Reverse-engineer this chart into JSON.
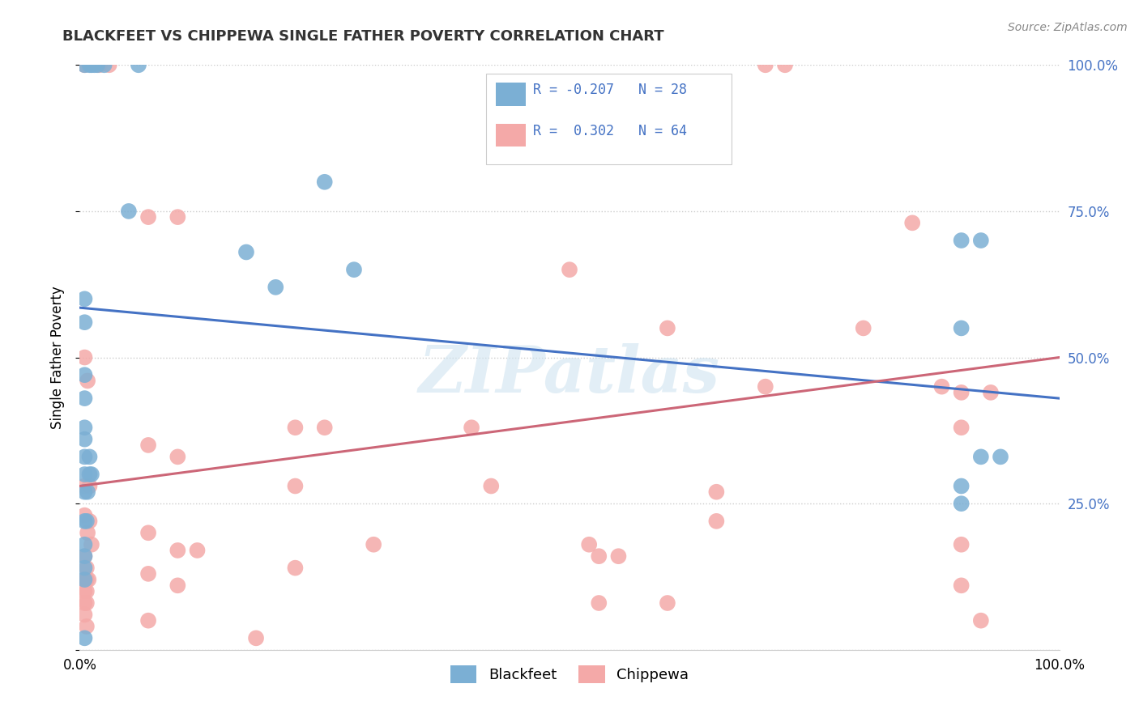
{
  "title": "BLACKFEET VS CHIPPEWA SINGLE FATHER POVERTY CORRELATION CHART",
  "source": "Source: ZipAtlas.com",
  "ylabel": "Single Father Poverty",
  "watermark": "ZIPatlas",
  "blue_color": "#7BAFD4",
  "pink_color": "#F4A9A8",
  "line_blue": "#4472C4",
  "line_pink": "#CC6677",
  "legend_text_color": "#4472C4",
  "blackfeet_points": [
    [
      0.005,
      1.0
    ],
    [
      0.01,
      1.0
    ],
    [
      0.012,
      1.0
    ],
    [
      0.015,
      1.0
    ],
    [
      0.018,
      1.0
    ],
    [
      0.025,
      1.0
    ],
    [
      0.06,
      1.0
    ],
    [
      0.005,
      0.6
    ],
    [
      0.005,
      0.56
    ],
    [
      0.005,
      0.47
    ],
    [
      0.005,
      0.43
    ],
    [
      0.005,
      0.38
    ],
    [
      0.005,
      0.36
    ],
    [
      0.005,
      0.33
    ],
    [
      0.01,
      0.33
    ],
    [
      0.005,
      0.3
    ],
    [
      0.01,
      0.3
    ],
    [
      0.012,
      0.3
    ],
    [
      0.005,
      0.27
    ],
    [
      0.008,
      0.27
    ],
    [
      0.005,
      0.22
    ],
    [
      0.007,
      0.22
    ],
    [
      0.005,
      0.18
    ],
    [
      0.005,
      0.16
    ],
    [
      0.005,
      0.14
    ],
    [
      0.005,
      0.12
    ],
    [
      0.17,
      0.68
    ],
    [
      0.2,
      0.62
    ],
    [
      0.25,
      0.8
    ],
    [
      0.28,
      0.65
    ],
    [
      0.9,
      0.7
    ],
    [
      0.92,
      0.7
    ],
    [
      0.9,
      0.55
    ],
    [
      0.92,
      0.33
    ],
    [
      0.94,
      0.33
    ],
    [
      0.9,
      0.28
    ],
    [
      0.9,
      0.25
    ],
    [
      0.05,
      0.75
    ],
    [
      0.005,
      0.02
    ]
  ],
  "chippewa_points": [
    [
      0.005,
      0.28
    ],
    [
      0.01,
      0.28
    ],
    [
      0.005,
      0.5
    ],
    [
      0.008,
      0.46
    ],
    [
      0.005,
      0.23
    ],
    [
      0.008,
      0.2
    ],
    [
      0.005,
      0.16
    ],
    [
      0.007,
      0.14
    ],
    [
      0.005,
      0.12
    ],
    [
      0.007,
      0.12
    ],
    [
      0.009,
      0.12
    ],
    [
      0.005,
      0.1
    ],
    [
      0.007,
      0.1
    ],
    [
      0.005,
      0.08
    ],
    [
      0.007,
      0.08
    ],
    [
      0.005,
      0.06
    ],
    [
      0.007,
      0.04
    ],
    [
      0.01,
      0.22
    ],
    [
      0.012,
      0.18
    ],
    [
      0.005,
      1.0
    ],
    [
      0.02,
      1.0
    ],
    [
      0.03,
      1.0
    ],
    [
      0.07,
      0.74
    ],
    [
      0.1,
      0.74
    ],
    [
      0.07,
      0.35
    ],
    [
      0.1,
      0.33
    ],
    [
      0.07,
      0.2
    ],
    [
      0.1,
      0.17
    ],
    [
      0.12,
      0.17
    ],
    [
      0.07,
      0.13
    ],
    [
      0.1,
      0.11
    ],
    [
      0.07,
      0.05
    ],
    [
      0.22,
      0.38
    ],
    [
      0.25,
      0.38
    ],
    [
      0.22,
      0.28
    ],
    [
      0.3,
      0.18
    ],
    [
      0.22,
      0.14
    ],
    [
      0.4,
      0.38
    ],
    [
      0.42,
      0.28
    ],
    [
      0.5,
      0.65
    ],
    [
      0.52,
      0.18
    ],
    [
      0.53,
      0.16
    ],
    [
      0.55,
      0.16
    ],
    [
      0.53,
      0.08
    ],
    [
      0.6,
      0.55
    ],
    [
      0.65,
      0.27
    ],
    [
      0.65,
      0.22
    ],
    [
      0.7,
      1.0
    ],
    [
      0.72,
      1.0
    ],
    [
      0.7,
      0.45
    ],
    [
      0.85,
      0.73
    ],
    [
      0.88,
      0.45
    ],
    [
      0.9,
      0.44
    ],
    [
      0.93,
      0.44
    ],
    [
      0.9,
      0.38
    ],
    [
      0.9,
      0.18
    ],
    [
      0.9,
      0.11
    ],
    [
      0.92,
      0.05
    ],
    [
      0.6,
      0.08
    ],
    [
      0.8,
      0.55
    ],
    [
      0.18,
      0.02
    ]
  ],
  "blue_line_x": [
    0.0,
    1.0
  ],
  "blue_line_y": [
    0.585,
    0.43
  ],
  "pink_line_x": [
    0.0,
    1.0
  ],
  "pink_line_y": [
    0.28,
    0.5
  ],
  "xtick_positions": [
    0.0,
    0.25,
    0.5,
    0.75,
    1.0
  ],
  "xtick_labels": [
    "0.0%",
    "",
    "",
    "",
    "100.0%"
  ],
  "ytick_positions": [
    0.0,
    0.25,
    0.5,
    0.75,
    1.0
  ],
  "ytick_labels_right": [
    "",
    "25.0%",
    "50.0%",
    "75.0%",
    "100.0%"
  ]
}
